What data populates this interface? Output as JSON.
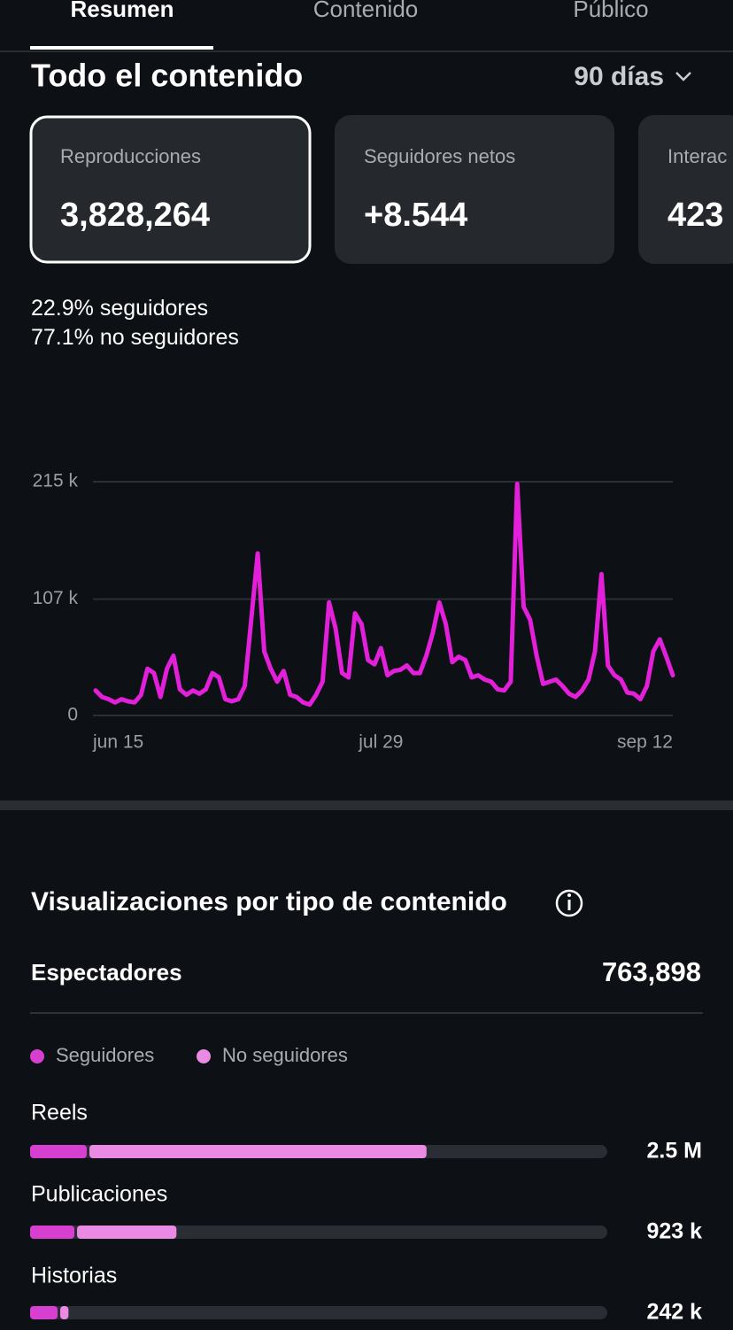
{
  "tabs": [
    "Resumen",
    "Contenido",
    "Público"
  ],
  "header": {
    "title": "Todo el contenido",
    "period": "90 días"
  },
  "cards": [
    {
      "label": "Reproducciones",
      "value": "3,828,264"
    },
    {
      "label": "Seguidores netos",
      "value": "+8.544"
    },
    {
      "label": "Interac",
      "value": "423"
    }
  ],
  "split": [
    {
      "percent": "22.9%",
      "label": "seguidores"
    },
    {
      "percent": "77.1%",
      "label": "no seguidores"
    }
  ],
  "viewers": {
    "label": "Espectadores",
    "value": "763,898"
  },
  "chart_data": [
    {
      "type": "line",
      "color": "#e21fd9",
      "grid": true,
      "categories": [
        "jun 15",
        null,
        null,
        null,
        null,
        null,
        null,
        null,
        null,
        null,
        null,
        null,
        null,
        null,
        null,
        null,
        null,
        null,
        null,
        null,
        null,
        null,
        null,
        null,
        null,
        null,
        null,
        null,
        null,
        null,
        null,
        null,
        null,
        null,
        null,
        null,
        null,
        null,
        null,
        null,
        null,
        null,
        null,
        null,
        "jul 29",
        null,
        null,
        null,
        null,
        null,
        null,
        null,
        null,
        null,
        null,
        null,
        null,
        null,
        null,
        null,
        null,
        null,
        null,
        null,
        null,
        null,
        null,
        null,
        null,
        null,
        null,
        null,
        null,
        null,
        null,
        null,
        null,
        null,
        null,
        null,
        null,
        null,
        null,
        null,
        null,
        null,
        null,
        null,
        null,
        "sep 12"
      ],
      "values": [
        23000,
        17000,
        15000,
        12000,
        15000,
        13000,
        12000,
        19000,
        43000,
        39000,
        17000,
        43000,
        55000,
        24000,
        19000,
        23000,
        20000,
        24000,
        39000,
        35000,
        15000,
        13000,
        15000,
        27000,
        88000,
        149000,
        59000,
        43000,
        31000,
        41000,
        19000,
        17000,
        12000,
        10000,
        19000,
        31000,
        104000,
        80000,
        39000,
        35000,
        94000,
        84000,
        51000,
        47000,
        62000,
        37000,
        41000,
        42000,
        46000,
        39000,
        39000,
        55000,
        76000,
        104000,
        84000,
        49000,
        54000,
        51000,
        35000,
        37000,
        33000,
        31000,
        24000,
        23000,
        31000,
        213000,
        100000,
        88000,
        55000,
        29000,
        31000,
        33000,
        27000,
        20000,
        17000,
        23000,
        33000,
        59000,
        130000,
        46000,
        37000,
        33000,
        21000,
        20000,
        15000,
        27000,
        59000,
        70000,
        54000,
        37000
      ],
      "ylim": [
        0,
        215000
      ],
      "yticks": [
        0,
        {
          "value": 107000,
          "label": "107 k"
        },
        {
          "value": 215000,
          "label": "215 k"
        }
      ]
    },
    {
      "type": "bar",
      "orientation": "horizontal",
      "stacked": true,
      "title": "Visualizaciones por tipo de contenido",
      "categories": [
        "Reels",
        "Publicaciones",
        "Historias"
      ],
      "series": [
        {
          "name": "Seguidores",
          "color": "#d63fd0",
          "values": [
            374000,
            296000,
            190000
          ]
        },
        {
          "name": "No seguidores",
          "color": "#ea8ae4",
          "values": [
            2126000,
            627000,
            52000
          ]
        }
      ],
      "totals": [
        "2.5 M",
        "923 k",
        "242 k"
      ],
      "xlim": [
        0,
        3640000
      ]
    }
  ]
}
